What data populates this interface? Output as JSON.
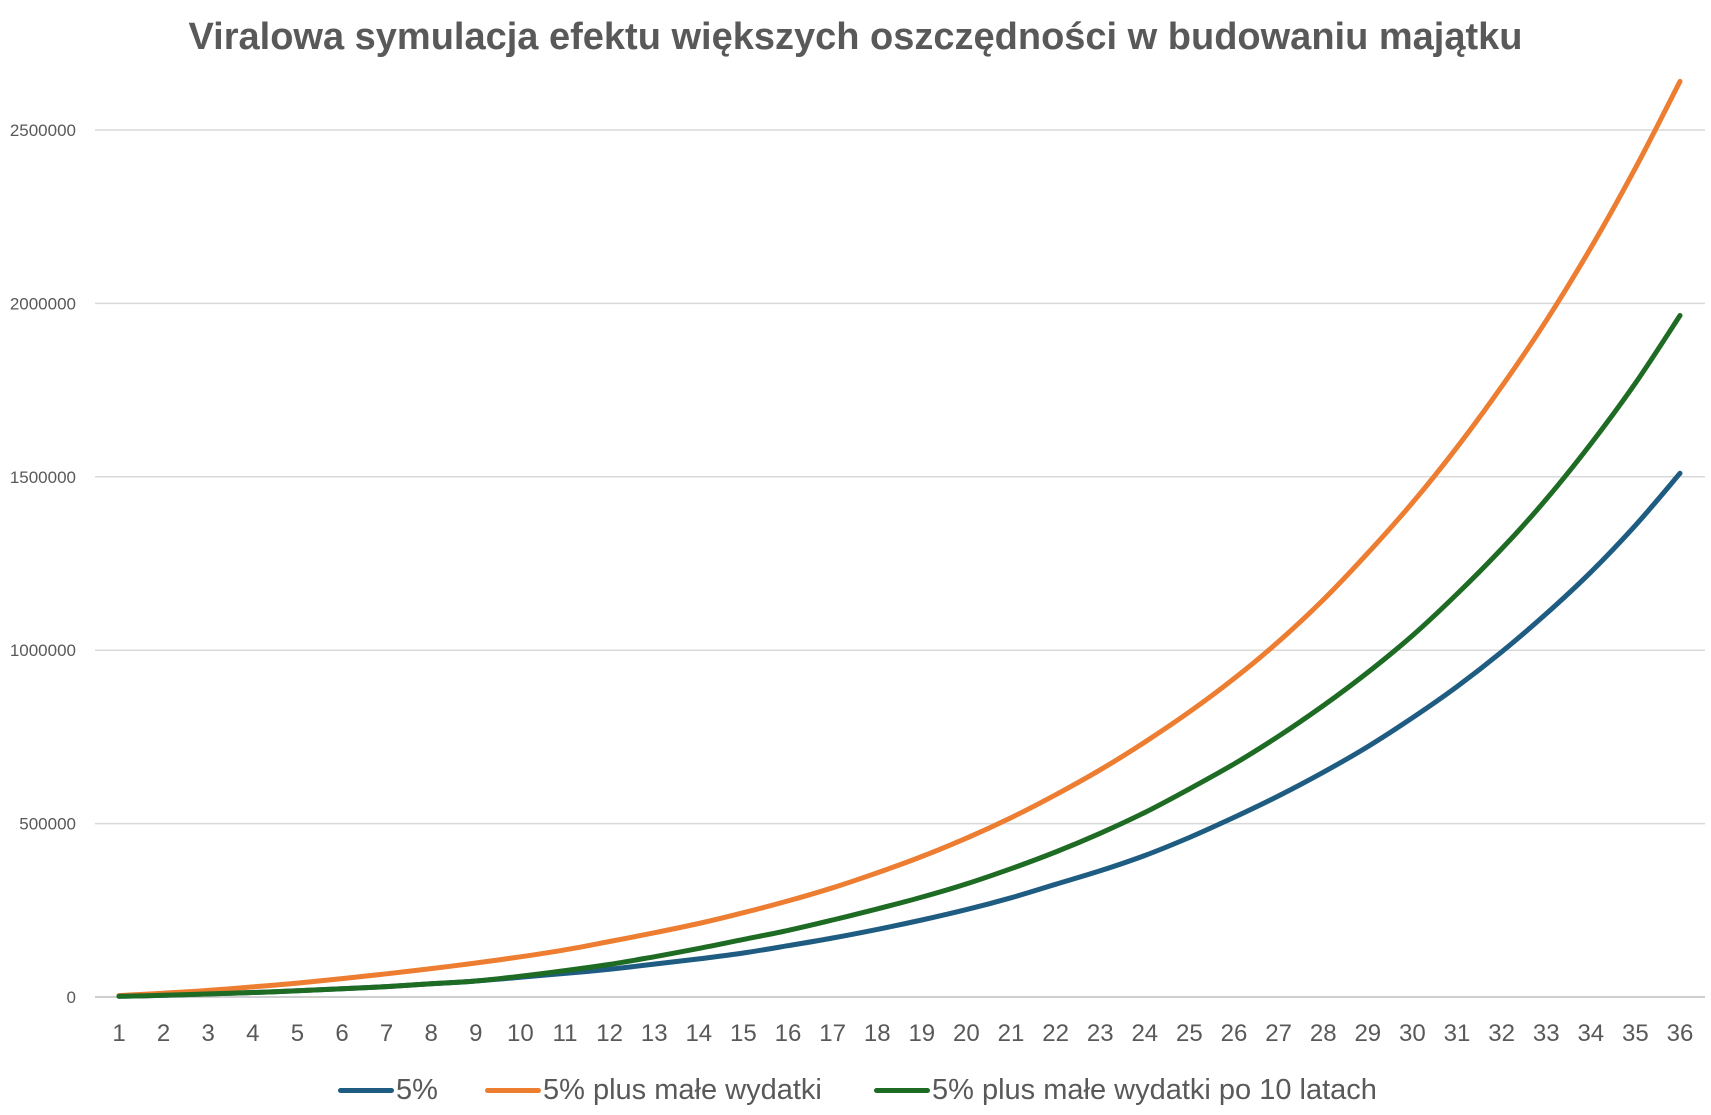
{
  "chart_data": {
    "type": "line",
    "title": "Viralowa symulacja efektu większych oszczędności w budowaniu majątku",
    "xlabel": "",
    "ylabel": "",
    "ylim": [
      0,
      2500000
    ],
    "yticks": [
      "0",
      "500000",
      "1000000",
      "1500000",
      "2000000",
      "2500000"
    ],
    "grid": true,
    "legend": "bottom",
    "categories": [
      "1",
      "2",
      "3",
      "4",
      "5",
      "6",
      "7",
      "8",
      "9",
      "10",
      "11",
      "12",
      "13",
      "14",
      "15",
      "16",
      "17",
      "18",
      "19",
      "20",
      "21",
      "22",
      "23",
      "24",
      "25",
      "26",
      "27",
      "28",
      "29",
      "30",
      "31",
      "32",
      "33",
      "34",
      "35",
      "36"
    ],
    "series": [
      {
        "name": "5%",
        "color": "#1f5c82",
        "values": [
          2000,
          5000,
          9000,
          13000,
          18000,
          24000,
          30000,
          38000,
          46000,
          57000,
          68000,
          80000,
          95000,
          110000,
          127000,
          148000,
          170000,
          195000,
          222000,
          252000,
          286000,
          325000,
          364000,
          408000,
          460000,
          518000,
          580000,
          648000,
          722000,
          805000,
          895000,
          995000,
          1105000,
          1225000,
          1360000,
          1510000
        ]
      },
      {
        "name": "5% plus małe wydatki",
        "color": "#ed7d31",
        "values": [
          4000,
          11000,
          19000,
          29000,
          40000,
          53000,
          67000,
          82000,
          98000,
          116000,
          136000,
          160000,
          185000,
          212000,
          243000,
          277000,
          315000,
          358000,
          405000,
          458000,
          517000,
          583000,
          655000,
          735000,
          822000,
          918000,
          1025000,
          1145000,
          1280000,
          1425000,
          1585000,
          1760000,
          1950000,
          2160000,
          2390000,
          2640000
        ]
      },
      {
        "name": "5% plus małe wydatki po 10 latach",
        "color": "#1e6b24",
        "values": [
          2000,
          5000,
          9000,
          13000,
          18000,
          24000,
          30000,
          38000,
          46000,
          60000,
          76000,
          94000,
          116000,
          140000,
          166000,
          192000,
          222000,
          254000,
          288000,
          326000,
          370000,
          418000,
          472000,
          532000,
          600000,
          672000,
          752000,
          840000,
          936000,
          1042000,
          1162000,
          1292000,
          1435000,
          1595000,
          1770000,
          1965000
        ]
      }
    ]
  }
}
